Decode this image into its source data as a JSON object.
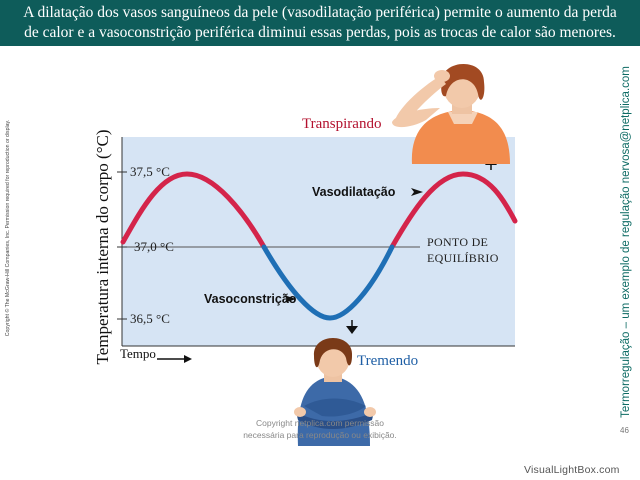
{
  "banner": {
    "line1": "A dilatação dos vasos sanguíneos da pele (vasodilatação periférica) permite o aumento da perda",
    "line2": "de calor e a vasoconstrição periférica diminui essas perdas, pois as trocas de calor são menores."
  },
  "side_title": "Termorregulação – um exemplo de regulação nervosa@netplica.com",
  "side_copyright": "Copyright © The McGraw-Hill Companies, Inc. Permission required for reproduction or display.",
  "diagram": {
    "y_axis_label": "Temperatura interna do corpo (°C)",
    "ticks": [
      "37,5 °C",
      "37,0 °C",
      "36,5 °C"
    ],
    "equilibrium_line1": "PONTO DE",
    "equilibrium_line2": "EQUILÍBRIO",
    "vasodilation_label": "Vasodilatação",
    "vasoconstriction_label": "Vasoconstrição",
    "sweating_label": "Transpirando",
    "shivering_label": "Tremendo",
    "time_label": "Tempo",
    "colors": {
      "warm": "#d4244a",
      "cold": "#1f6fb5",
      "panel": "#d6e4f4"
    }
  },
  "footer": {
    "copyright_line1": "Copyright netplica.com permissão",
    "copyright_line2": "necessária para reprodução ou exibição.",
    "page_number": "46",
    "watermark": "VisualLightBox.com"
  }
}
